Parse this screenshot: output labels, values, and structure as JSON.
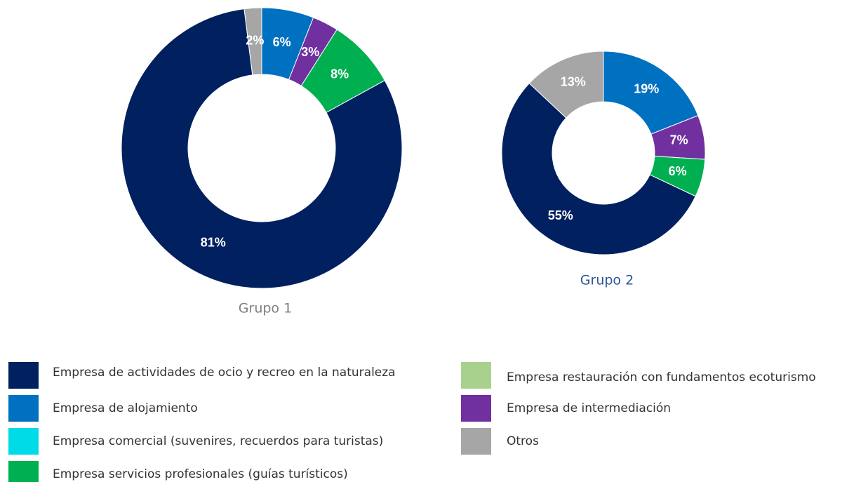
{
  "chart_data": {
    "type": "donut",
    "categories": [
      "Empresa de alojamiento",
      "Empresa de intermediación",
      "Empresa servicios profesionales (guías turísticos)",
      "Empresa de actividades de ocio y recreo en la naturaleza",
      "Otros",
      "Empresa comercial (suvenires, recuerdos para turistas)",
      "Empresa restauración con fundamentos ecoturismo"
    ],
    "colors": [
      "#0070c0",
      "#7030a0",
      "#00b050",
      "#002060",
      "#a6a6a6",
      "#00dbe8",
      "#a9d18e"
    ],
    "series": [
      {
        "name": "Grupo 1",
        "values": [
          6,
          3,
          8,
          81,
          2,
          null,
          null
        ],
        "value_labels": [
          "6%",
          "3%",
          "8%",
          "81%",
          "2%",
          null,
          null
        ]
      },
      {
        "name": "Grupo 2",
        "values": [
          19,
          7,
          6,
          55,
          13,
          null,
          null
        ],
        "value_labels": [
          "19%",
          "7%",
          "6%",
          "55%",
          "13%",
          null,
          null
        ]
      }
    ]
  }
}
